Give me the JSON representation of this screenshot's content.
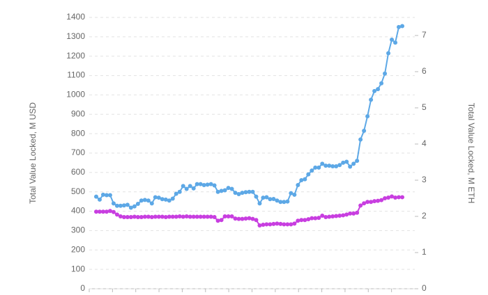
{
  "chart_data": {
    "type": "line",
    "y_label": "Total Value Locked, M USD",
    "y2_label": "Total Value Locked, M ETH",
    "categories": [
      null,
      null,
      null,
      null,
      null,
      null,
      null,
      null,
      null,
      null,
      null,
      null,
      null,
      null,
      null,
      null,
      null,
      null,
      null,
      null,
      null,
      null,
      null,
      null,
      null,
      null,
      null,
      null,
      null,
      null,
      null,
      null,
      null,
      null,
      null,
      null,
      null,
      null,
      null,
      null,
      null,
      null,
      null,
      null,
      null,
      null,
      null,
      null,
      null,
      null,
      null,
      null,
      null,
      null,
      null,
      null,
      null,
      null,
      null,
      null,
      null,
      null,
      null,
      null,
      null,
      null,
      null,
      null,
      null,
      null,
      null,
      null,
      null,
      null,
      null,
      null,
      null,
      null,
      null,
      null,
      null,
      null,
      null,
      null,
      null,
      null,
      null,
      null,
      null
    ],
    "series": [
      {
        "color": "#5da8e6",
        "values": [
          475,
          460,
          485,
          483,
          483,
          440,
          428,
          428,
          430,
          433,
          418,
          425,
          438,
          455,
          458,
          455,
          440,
          472,
          470,
          462,
          460,
          455,
          465,
          490,
          500,
          530,
          515,
          530,
          518,
          540,
          540,
          535,
          537,
          540,
          533,
          500,
          505,
          508,
          520,
          515,
          495,
          488,
          495,
          498,
          500,
          500,
          475,
          440,
          470,
          472,
          462,
          463,
          455,
          448,
          448,
          450,
          493,
          485,
          535,
          560,
          565,
          590,
          610,
          625,
          625,
          645,
          635,
          635,
          632,
          632,
          638,
          650,
          655,
          630,
          645,
          660,
          770,
          815,
          890,
          975,
          1020,
          1030,
          1060,
          1110,
          1215,
          1285,
          1270,
          1350,
          1355
        ]
      },
      {
        "color": "#c83ee0",
        "axis": "y2",
        "values": [
          2.13,
          2.13,
          2.13,
          2.13,
          2.15,
          2.12,
          2.05,
          2.0,
          1.98,
          1.98,
          1.98,
          1.99,
          1.98,
          1.98,
          1.99,
          1.99,
          1.98,
          1.99,
          1.99,
          1.99,
          1.98,
          1.99,
          1.99,
          1.99,
          2.0,
          1.99,
          2.0,
          1.99,
          1.99,
          1.99,
          1.99,
          1.99,
          1.99,
          1.99,
          1.98,
          1.88,
          1.9,
          2.0,
          2.0,
          2.0,
          1.94,
          1.93,
          1.93,
          1.94,
          1.95,
          1.93,
          1.9,
          1.75,
          1.77,
          1.78,
          1.78,
          1.79,
          1.8,
          1.79,
          1.78,
          1.78,
          1.78,
          1.8,
          1.88,
          1.9,
          1.9,
          1.92,
          1.95,
          1.95,
          1.96,
          2.02,
          1.98,
          1.99,
          2.0,
          2.01,
          2.02,
          2.03,
          2.05,
          2.08,
          2.08,
          2.1,
          2.3,
          2.36,
          2.4,
          2.4,
          2.42,
          2.43,
          2.45,
          2.5,
          2.52,
          2.55,
          2.52,
          2.53,
          2.53
        ]
      }
    ],
    "ylim": [
      0,
      1400
    ],
    "yticks": [
      0,
      100,
      200,
      300,
      400,
      500,
      600,
      700,
      800,
      900,
      1000,
      1100,
      1200,
      1300,
      1400
    ],
    "y2lim": [
      0,
      7.5
    ],
    "y2ticks": [
      0,
      1,
      2,
      3,
      4,
      5,
      6,
      7
    ],
    "grid": true
  }
}
